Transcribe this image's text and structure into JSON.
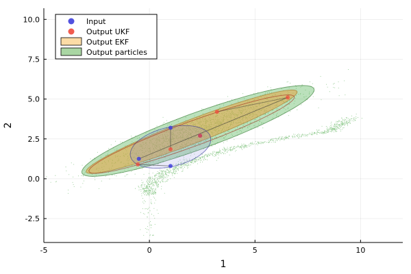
{
  "chart_data": {
    "type": "scatter",
    "xlabel": "1",
    "ylabel": "2",
    "xlim": [
      -5,
      12
    ],
    "ylim": [
      -4,
      10.7
    ],
    "xticks": [
      -5,
      0,
      5,
      10
    ],
    "yticks": [
      -2.5,
      0.0,
      2.5,
      5.0,
      7.5,
      10.0
    ],
    "xtick_labels": [
      "-5",
      "0",
      "5",
      "10"
    ],
    "ytick_labels": [
      "-2.5",
      "0.0",
      "2.5",
      "5.0",
      "7.5",
      "10.0"
    ],
    "grid": true,
    "legend_position": "top-left",
    "legend": [
      {
        "label": "Input",
        "marker": "circle",
        "color": "#3f3fdb"
      },
      {
        "label": "Output UKF",
        "marker": "circle",
        "color": "#f04a3c"
      },
      {
        "label": "Output EKF",
        "marker": "box",
        "color": "#fbdca6"
      },
      {
        "label": "Output particles",
        "marker": "box",
        "color": "#a9d6a3"
      }
    ],
    "series": [
      {
        "name": "Input",
        "color": "#3f3fdb",
        "mean": [
          1.0,
          2.0
        ],
        "sigma_points": [
          [
            1.0,
            3.2
          ],
          [
            1.0,
            0.8
          ],
          [
            -0.5,
            1.25
          ],
          [
            2.4,
            2.7
          ]
        ],
        "ellipse": {
          "center": [
            1.0,
            2.0
          ],
          "rx": 2.0,
          "ry": 1.2,
          "angle_deg": 22
        }
      },
      {
        "name": "Output UKF",
        "color": "#f04a3c",
        "sigma_points": [
          [
            3.2,
            4.2
          ],
          [
            1.0,
            1.85
          ],
          [
            -0.55,
            0.9
          ],
          [
            6.55,
            5.1
          ],
          [
            2.4,
            2.7
          ]
        ],
        "ellipse": {
          "center": [
            2.0,
            2.8
          ],
          "rx": 5.4,
          "ry": 0.75,
          "angle_deg": 26
        }
      },
      {
        "name": "Output EKF",
        "color": "#e5a540",
        "ellipse": {
          "center": [
            2.0,
            2.95
          ],
          "rx": 5.6,
          "ry": 0.72,
          "angle_deg": 27
        }
      },
      {
        "name": "Output particles",
        "color": "#3a9a35",
        "ellipse": {
          "center": [
            2.3,
            3.0
          ],
          "rx": 6.1,
          "ry": 1.1,
          "angle_deg": 26
        },
        "curve_y": [
          -0.5,
          0.0,
          0.5,
          1.0,
          1.5,
          2.0,
          2.5,
          3.0
        ],
        "curve_x_at_y": [
          -0.05,
          0.3,
          0.9,
          1.75,
          2.8,
          4.2,
          6.0,
          8.5
        ]
      }
    ]
  }
}
